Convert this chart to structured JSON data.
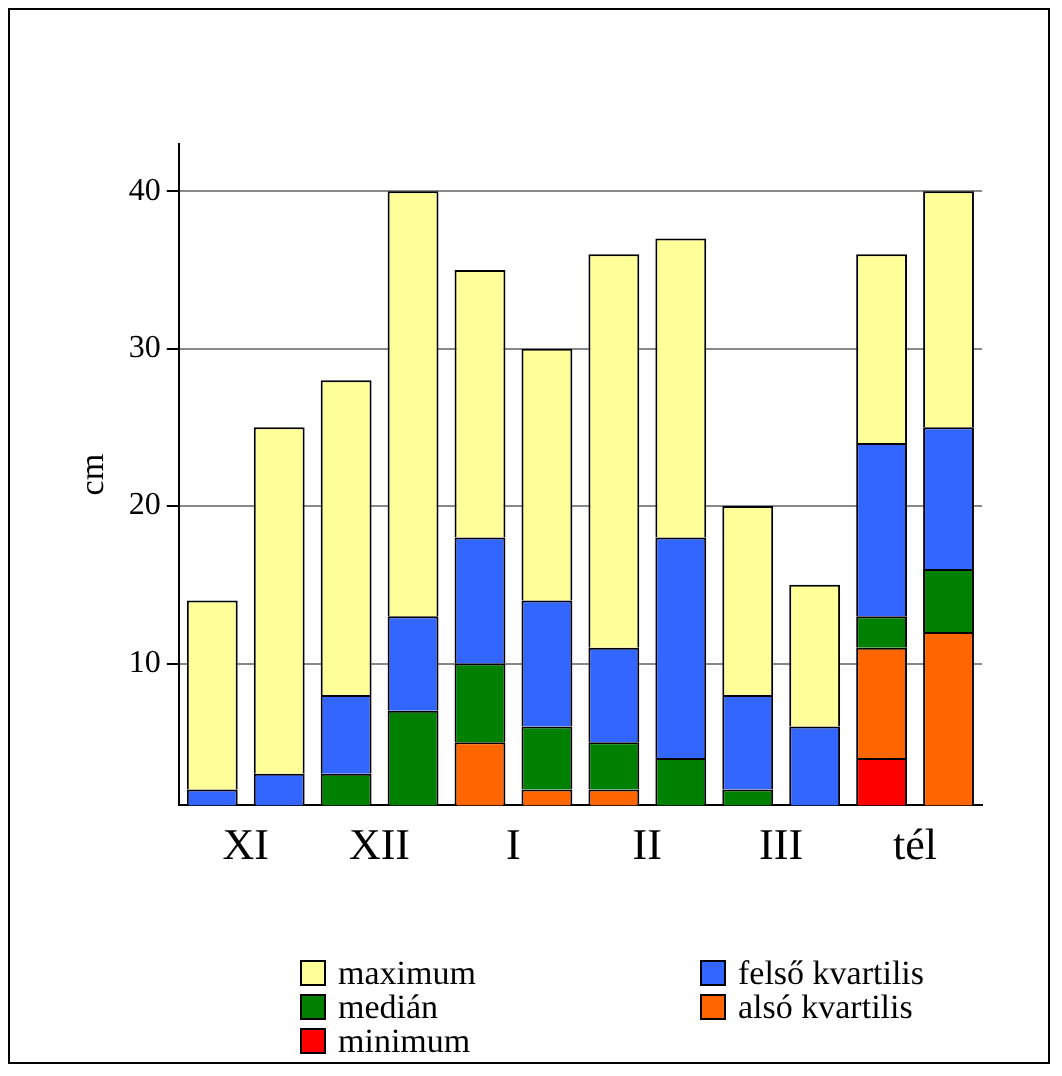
{
  "chart_data": {
    "type": "bar",
    "stacked": true,
    "ylabel": "cm",
    "ylim": [
      1,
      43
    ],
    "yticks": [
      10,
      20,
      30,
      40
    ],
    "grid": "y",
    "legend": "bottom",
    "categories": [
      "XI",
      null,
      "XII",
      null,
      "I",
      null,
      "II",
      null,
      "III",
      null,
      "tél",
      null
    ],
    "series": [
      {
        "name": "minimum",
        "color": "#ff0000",
        "values": [
          null,
          null,
          null,
          null,
          null,
          null,
          null,
          null,
          null,
          null,
          4,
          null
        ]
      },
      {
        "name": "alsó kvartilis",
        "color": "#ff6600",
        "values": [
          null,
          null,
          null,
          null,
          5,
          2,
          2,
          null,
          null,
          null,
          7,
          12
        ]
      },
      {
        "name": "medián",
        "color": "#008000",
        "values": [
          null,
          null,
          3,
          7,
          5,
          4,
          3,
          4,
          2,
          null,
          2,
          4
        ]
      },
      {
        "name": "felső kvartilis",
        "color": "#3366ff",
        "values": [
          2,
          3,
          5,
          6,
          8,
          8,
          6,
          14,
          6,
          6,
          11,
          9
        ]
      },
      {
        "name": "maximum",
        "color": "#ffff99",
        "values": [
          12,
          22,
          20,
          27,
          17,
          16,
          25,
          19,
          12,
          9,
          12,
          15
        ]
      }
    ]
  }
}
